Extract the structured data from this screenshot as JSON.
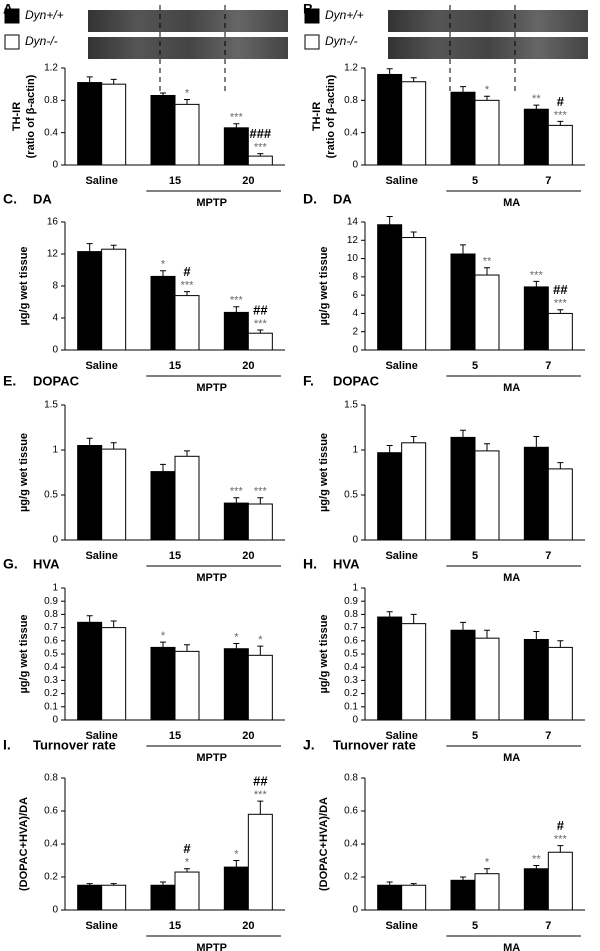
{
  "chart_data": [
    {
      "type": "bar",
      "panel": "A.",
      "ylabel": [
        "TH-IR",
        "(ratio of β-actin)"
      ],
      "categories": [
        "Saline",
        "15",
        "20"
      ],
      "group_label": "MPTP",
      "ylim": [
        0,
        1.2
      ],
      "yticks": [
        0,
        0.4,
        0.8,
        1.2
      ],
      "series": [
        {
          "name": "Dyn+/+",
          "color": "#000000",
          "values": [
            1.02,
            0.86,
            0.46
          ],
          "errors": [
            0.07,
            0.03,
            0.05
          ],
          "sig": [
            null,
            null,
            "***"
          ]
        },
        {
          "name": "Dyn-/-",
          "color": "#ffffff",
          "values": [
            1.0,
            0.75,
            0.11
          ],
          "errors": [
            0.06,
            0.06,
            0.03
          ],
          "sig": [
            null,
            "*",
            "***"
          ]
        }
      ],
      "hash": [
        null,
        null,
        "###"
      ]
    },
    {
      "type": "bar",
      "panel": "B.",
      "ylabel": [
        "TH-IR",
        "(ratio of β-actin)"
      ],
      "categories": [
        "Saline",
        "5",
        "7"
      ],
      "group_label": "MA",
      "ylim": [
        0,
        1.2
      ],
      "yticks": [
        0,
        0.4,
        0.8,
        1.2
      ],
      "series": [
        {
          "name": "Dyn+/+",
          "color": "#000000",
          "values": [
            1.12,
            0.9,
            0.69
          ],
          "errors": [
            0.07,
            0.07,
            0.05
          ],
          "sig": [
            null,
            null,
            "**"
          ]
        },
        {
          "name": "Dyn-/-",
          "color": "#ffffff",
          "values": [
            1.03,
            0.8,
            0.49
          ],
          "errors": [
            0.05,
            0.05,
            0.05
          ],
          "sig": [
            null,
            "*",
            "***"
          ]
        }
      ],
      "hash": [
        null,
        null,
        "#"
      ]
    },
    {
      "type": "bar",
      "panel": "C.",
      "title": "DA",
      "ylabel": [
        "µg/g wet tissue"
      ],
      "categories": [
        "Saline",
        "15",
        "20"
      ],
      "group_label": "MPTP",
      "ylim": [
        0,
        16
      ],
      "yticks": [
        0,
        4,
        8,
        12,
        16
      ],
      "series": [
        {
          "color": "#000000",
          "values": [
            12.3,
            9.2,
            4.7
          ],
          "errors": [
            1.0,
            0.7,
            0.7
          ],
          "sig": [
            null,
            "*",
            "***"
          ]
        },
        {
          "color": "#ffffff",
          "values": [
            12.6,
            6.8,
            2.1
          ],
          "errors": [
            0.5,
            0.5,
            0.4
          ],
          "sig": [
            null,
            "***",
            "***"
          ]
        }
      ],
      "hash": [
        null,
        "#",
        "##"
      ]
    },
    {
      "type": "bar",
      "panel": "D.",
      "title": "DA",
      "ylabel": [
        "µg/g wet tissue"
      ],
      "categories": [
        "Saline",
        "5",
        "7"
      ],
      "group_label": "MA",
      "ylim": [
        0,
        14
      ],
      "yticks": [
        0,
        2,
        4,
        6,
        8,
        10,
        12,
        14
      ],
      "series": [
        {
          "color": "#000000",
          "values": [
            13.7,
            10.5,
            6.9
          ],
          "errors": [
            0.9,
            1.0,
            0.6
          ],
          "sig": [
            null,
            null,
            "***"
          ]
        },
        {
          "color": "#ffffff",
          "values": [
            12.3,
            8.2,
            4.0
          ],
          "errors": [
            0.6,
            0.8,
            0.4
          ],
          "sig": [
            null,
            "**",
            "***"
          ]
        }
      ],
      "hash": [
        null,
        null,
        "##"
      ]
    },
    {
      "type": "bar",
      "panel": "E.",
      "title": "DOPAC",
      "ylabel": [
        "µg/g wet tissue"
      ],
      "categories": [
        "Saline",
        "15",
        "20"
      ],
      "group_label": "MPTP",
      "ylim": [
        0,
        1.5
      ],
      "yticks": [
        0,
        0.5,
        1,
        1.5
      ],
      "series": [
        {
          "color": "#000000",
          "values": [
            1.05,
            0.76,
            0.41
          ],
          "errors": [
            0.08,
            0.08,
            0.06
          ],
          "sig": [
            null,
            null,
            "***"
          ]
        },
        {
          "color": "#ffffff",
          "values": [
            1.01,
            0.93,
            0.4
          ],
          "errors": [
            0.07,
            0.06,
            0.07
          ],
          "sig": [
            null,
            null,
            "***"
          ]
        }
      ]
    },
    {
      "type": "bar",
      "panel": "F.",
      "title": "DOPAC",
      "ylabel": [
        "µg/g wet tissue"
      ],
      "categories": [
        "Saline",
        "5",
        "7"
      ],
      "group_label": "MA",
      "ylim": [
        0,
        1.5
      ],
      "yticks": [
        0,
        0.5,
        1,
        1.5
      ],
      "series": [
        {
          "color": "#000000",
          "values": [
            0.97,
            1.14,
            1.03
          ],
          "errors": [
            0.08,
            0.08,
            0.12
          ]
        },
        {
          "color": "#ffffff",
          "values": [
            1.08,
            0.99,
            0.79
          ],
          "errors": [
            0.07,
            0.08,
            0.07
          ]
        }
      ]
    },
    {
      "type": "bar",
      "panel": "G.",
      "title": "HVA",
      "ylabel": [
        "µg/g wet tissue"
      ],
      "categories": [
        "Saline",
        "15",
        "20"
      ],
      "group_label": "MPTP",
      "ylim": [
        0,
        1
      ],
      "yticks": [
        0,
        0.1,
        0.2,
        0.3,
        0.4,
        0.5,
        0.6,
        0.7,
        0.8,
        0.9,
        1
      ],
      "series": [
        {
          "color": "#000000",
          "values": [
            0.74,
            0.55,
            0.54
          ],
          "errors": [
            0.05,
            0.04,
            0.04
          ],
          "sig": [
            null,
            "*",
            "*"
          ]
        },
        {
          "color": "#ffffff",
          "values": [
            0.7,
            0.52,
            0.49
          ],
          "errors": [
            0.05,
            0.05,
            0.07
          ],
          "sig": [
            null,
            null,
            "*"
          ]
        }
      ]
    },
    {
      "type": "bar",
      "panel": "H.",
      "title": "HVA",
      "ylabel": [
        "µg/g wet tissue"
      ],
      "categories": [
        "Saline",
        "5",
        "7"
      ],
      "group_label": "MA",
      "ylim": [
        0,
        1
      ],
      "yticks": [
        0,
        0.1,
        0.2,
        0.3,
        0.4,
        0.5,
        0.6,
        0.7,
        0.8,
        0.9,
        1
      ],
      "series": [
        {
          "color": "#000000",
          "values": [
            0.78,
            0.68,
            0.61
          ],
          "errors": [
            0.04,
            0.06,
            0.06
          ]
        },
        {
          "color": "#ffffff",
          "values": [
            0.73,
            0.62,
            0.55
          ],
          "errors": [
            0.07,
            0.06,
            0.05
          ]
        }
      ]
    },
    {
      "type": "bar",
      "panel": "I.",
      "title": "Turnover rate",
      "ylabel": [
        "(DOPAC+HVA)/DA"
      ],
      "categories": [
        "Saline",
        "15",
        "20"
      ],
      "group_label": "MPTP",
      "ylim": [
        0,
        0.8
      ],
      "yticks": [
        0,
        0.2,
        0.4,
        0.6,
        0.8
      ],
      "series": [
        {
          "color": "#000000",
          "values": [
            0.15,
            0.15,
            0.26
          ],
          "errors": [
            0.01,
            0.02,
            0.04
          ],
          "sig": [
            null,
            null,
            "*"
          ]
        },
        {
          "color": "#ffffff",
          "values": [
            0.15,
            0.23,
            0.58
          ],
          "errors": [
            0.01,
            0.02,
            0.08
          ],
          "sig": [
            null,
            "*",
            "***"
          ]
        }
      ],
      "hash": [
        null,
        "#",
        "##"
      ]
    },
    {
      "type": "bar",
      "panel": "J.",
      "title": "Turnover rate",
      "ylabel": [
        "(DOPAC+HVA)/DA"
      ],
      "categories": [
        "Saline",
        "5",
        "7"
      ],
      "group_label": "MA",
      "ylim": [
        0,
        0.8
      ],
      "yticks": [
        0,
        0.2,
        0.4,
        0.6,
        0.8
      ],
      "series": [
        {
          "color": "#000000",
          "values": [
            0.15,
            0.18,
            0.25
          ],
          "errors": [
            0.02,
            0.02,
            0.02
          ],
          "sig": [
            null,
            null,
            "**"
          ]
        },
        {
          "color": "#ffffff",
          "values": [
            0.15,
            0.22,
            0.35
          ],
          "errors": [
            0.01,
            0.03,
            0.04
          ],
          "sig": [
            null,
            "*",
            "***"
          ]
        }
      ],
      "hash": [
        null,
        null,
        "#"
      ]
    }
  ]
}
